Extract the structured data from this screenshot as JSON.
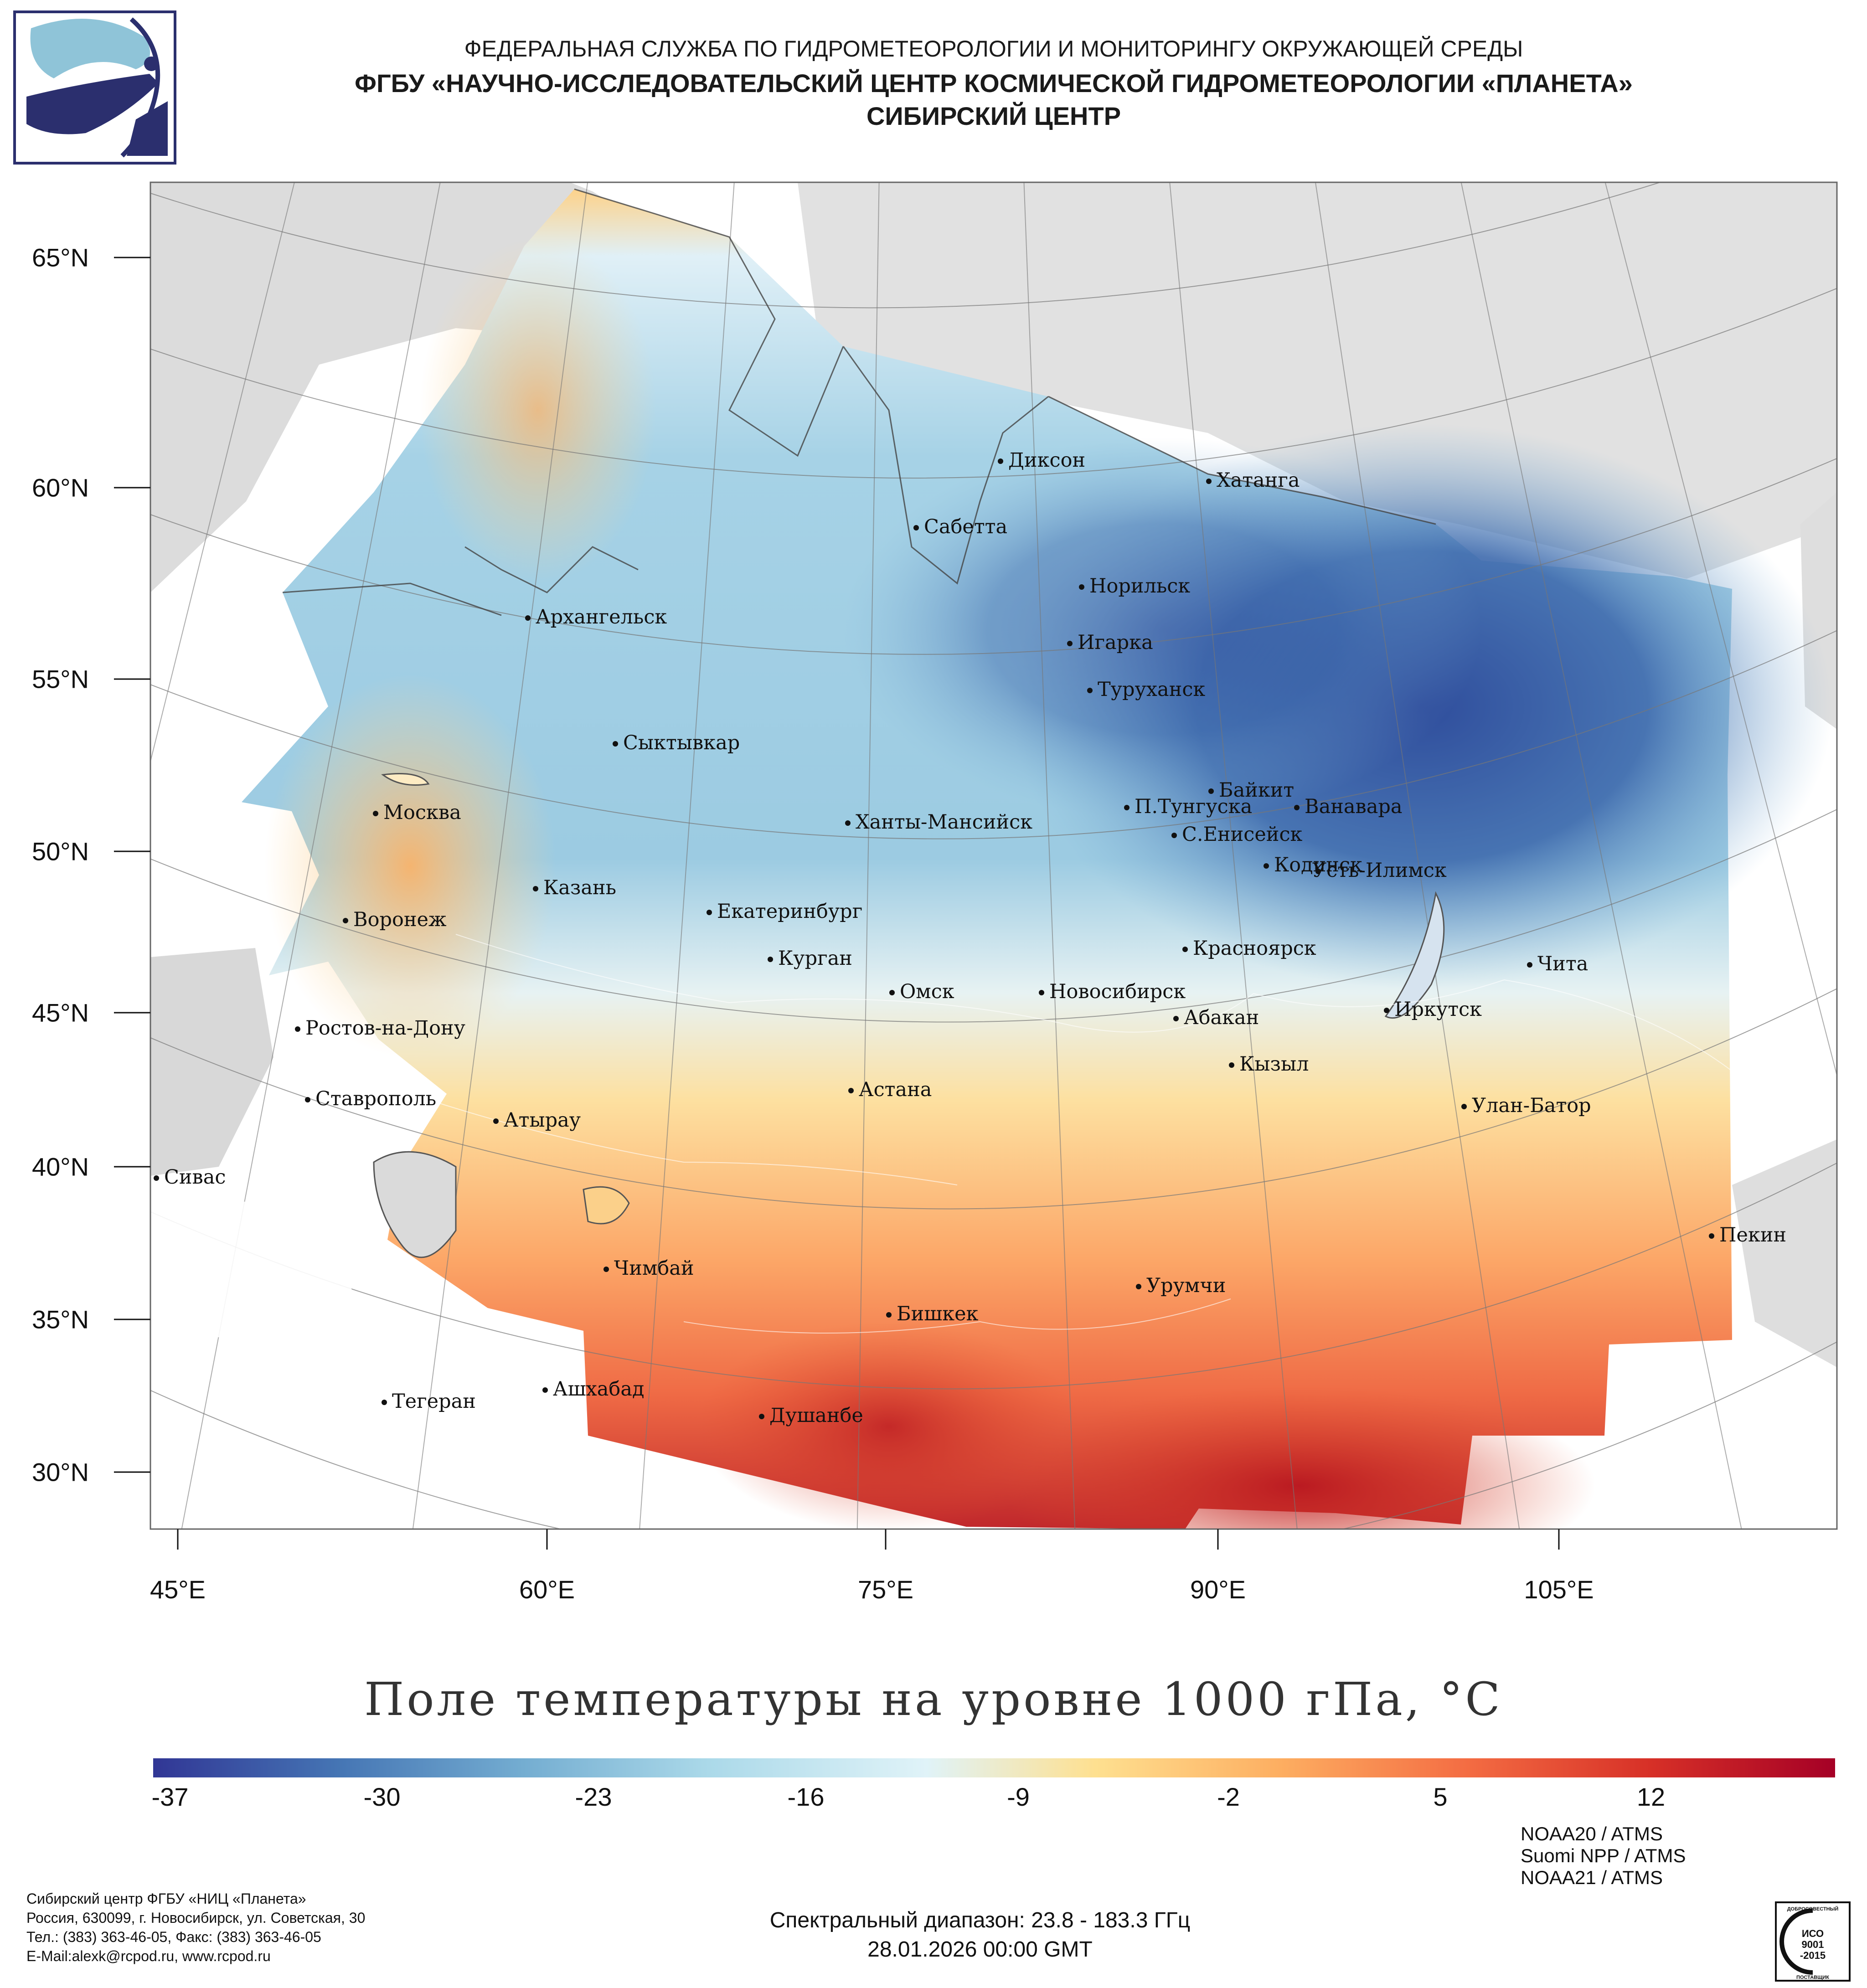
{
  "header": {
    "line1": "ФЕДЕРАЛЬНАЯ СЛУЖБА ПО ГИДРОМЕТЕОРОЛОГИИ И МОНИТОРИНГУ ОКРУЖАЮЩЕЙ СРЕДЫ",
    "line2": "ФГБУ «НАУЧНО-ИССЛЕДОВАТЕЛЬСКИЙ ЦЕНТР КОСМИЧЕСКОЙ ГИДРОМЕТЕОРОЛОГИИ «ПЛАНЕТА»",
    "line3": "СИБИРСКИЙ ЦЕНТР"
  },
  "map": {
    "lat_labels": [
      "65°N",
      "60°N",
      "55°N",
      "50°N",
      "45°N",
      "40°N",
      "35°N",
      "30°N"
    ],
    "lon_labels": [
      "45°E",
      "60°E",
      "75°E",
      "90°E",
      "105°E"
    ],
    "cities": [
      "Диксон",
      "Хатанга",
      "Сабетта",
      "Норильск",
      "Архангельск",
      "Игарка",
      "Туруханск",
      "Сыктывкар",
      "Байкит",
      "П.Тунгуска",
      "Ванавара",
      "Москва",
      "Ханты-Мансийск",
      "С.Енисейск",
      "Кодинск",
      "Усть-Илимск",
      "Казань",
      "Екатеринбург",
      "Воронеж",
      "Красноярск",
      "Курган",
      "Чита",
      "Омск",
      "Новосибирск",
      "Иркутск",
      "Ростов-на-Дону",
      "Абакан",
      "Кызыл",
      "Ставрополь",
      "Астана",
      "Улан-Батор",
      "Атырау",
      "Сивас",
      "Пекин",
      "Чимбай",
      "Урумчи",
      "Бишкек",
      "Ашхабад",
      "Тегеран",
      "Душанбе"
    ]
  },
  "title": "Поле температуры на уровне 1000 гПа, °C",
  "colorbar": {
    "ticks": [
      "-37",
      "-30",
      "-23",
      "-16",
      "-9",
      "-2",
      "5",
      "12"
    ],
    "colors": [
      "#313695",
      "#4575b4",
      "#74add1",
      "#abd9e9",
      "#e0f3f8",
      "#fee090",
      "#fdae61",
      "#f46d43",
      "#d73027",
      "#a50026"
    ]
  },
  "sensors": [
    "NOAA20 / ATMS",
    "Suomi NPP / ATMS",
    "NOAA21 / ATMS"
  ],
  "address": [
    "Сибирский центр ФГБУ «НИЦ «Планета»",
    "Россия, 630099, г. Новосибирск, ул. Советская, 30",
    "Тел.: (383) 363-46-05, Факс: (383) 363-46-05",
    "E-Mail:alexk@rcpod.ru, www.rcpod.ru"
  ],
  "spectral": "Спектральный диапазон: 23.8 - 183.3 ГГц",
  "datetime": "28.01.2026 00:00 GMT",
  "iso_badge": {
    "top": "ДОБРОСОВЕСТНЫЙ",
    "mid1": "ИСО",
    "mid2": "9001",
    "mid3": "-2015",
    "bottom": "ПОСТАВЩИК"
  }
}
